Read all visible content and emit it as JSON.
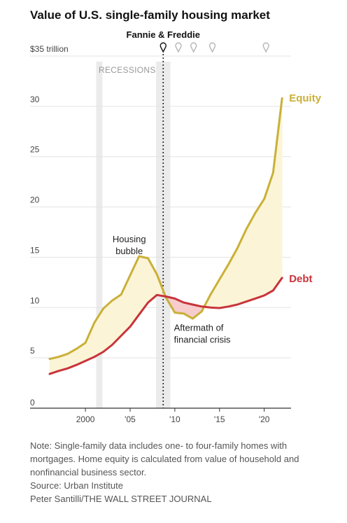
{
  "chart_data": {
    "type": "line",
    "title": "Value of U.S. single-family housing market",
    "y_unit_label": "$35 trillion",
    "ylim": [
      0,
      35
    ],
    "yticks": [
      0,
      5,
      10,
      15,
      20,
      25,
      30,
      35
    ],
    "ytick_labels": [
      "0",
      "5",
      "10",
      "15",
      "20",
      "25",
      "30",
      "$35 trillion"
    ],
    "xlim": [
      1996,
      2023
    ],
    "xticks": [
      2000,
      2005,
      2010,
      2015,
      2020
    ],
    "xtick_labels": [
      "2000",
      "'05",
      "'10",
      "'15",
      "'20"
    ],
    "grid": true,
    "series": [
      {
        "name": "Equity",
        "color": "#c9b038",
        "x": [
          1996,
          1997,
          1998,
          1999,
          2000,
          2001,
          2002,
          2003,
          2004,
          2005,
          2006,
          2007,
          2008,
          2009,
          2010,
          2011,
          2012,
          2013,
          2014,
          2015,
          2016,
          2017,
          2018,
          2019,
          2020,
          2021,
          2022
        ],
        "values": [
          4.9,
          5.1,
          5.4,
          5.9,
          6.5,
          8.5,
          9.9,
          10.7,
          11.3,
          13.2,
          15.1,
          14.9,
          13.3,
          11.0,
          9.5,
          9.4,
          8.9,
          9.6,
          11.3,
          12.8,
          14.3,
          15.9,
          17.8,
          19.4,
          20.8,
          23.4,
          30.8
        ]
      },
      {
        "name": "Debt",
        "color": "#c8343a",
        "x": [
          1996,
          1997,
          1998,
          1999,
          2000,
          2001,
          2002,
          2003,
          2004,
          2005,
          2006,
          2007,
          2008,
          2009,
          2010,
          2011,
          2012,
          2013,
          2014,
          2015,
          2016,
          2017,
          2018,
          2019,
          2020,
          2021,
          2022
        ],
        "values": [
          3.4,
          3.7,
          3.95,
          4.3,
          4.7,
          5.1,
          5.6,
          6.3,
          7.2,
          8.1,
          9.3,
          10.5,
          11.25,
          11.1,
          10.9,
          10.5,
          10.3,
          10.1,
          10.0,
          9.95,
          10.1,
          10.3,
          10.6,
          10.9,
          11.2,
          11.7,
          12.95
        ]
      }
    ],
    "recessions": [
      [
        2001.2,
        2001.9
      ],
      [
        2007.9,
        2009.5
      ]
    ],
    "recessions_label": "RECESSIONS",
    "event_line": {
      "x": 2008.7,
      "label": "Fannie & Freddie"
    },
    "event_markers_x": [
      2008.7,
      2010.4,
      2012.1,
      2014.2,
      2020.2
    ],
    "annotations": [
      {
        "text_lines": [
          "Housing",
          "bubble"
        ],
        "x": 2004.9,
        "y": 16.5
      },
      {
        "text_lines": [
          "Aftermath of",
          "financial crisis"
        ],
        "x": 2009.9,
        "y": 7.7
      }
    ]
  },
  "notes": {
    "note": "Note: Single-family data includes one- to four-family homes with mortgages. Home equity is calculated from value of household and nonfinancial business sector.",
    "source": "Source: Urban Institute",
    "credit": "Peter Santilli/THE WALL STREET JOURNAL"
  }
}
